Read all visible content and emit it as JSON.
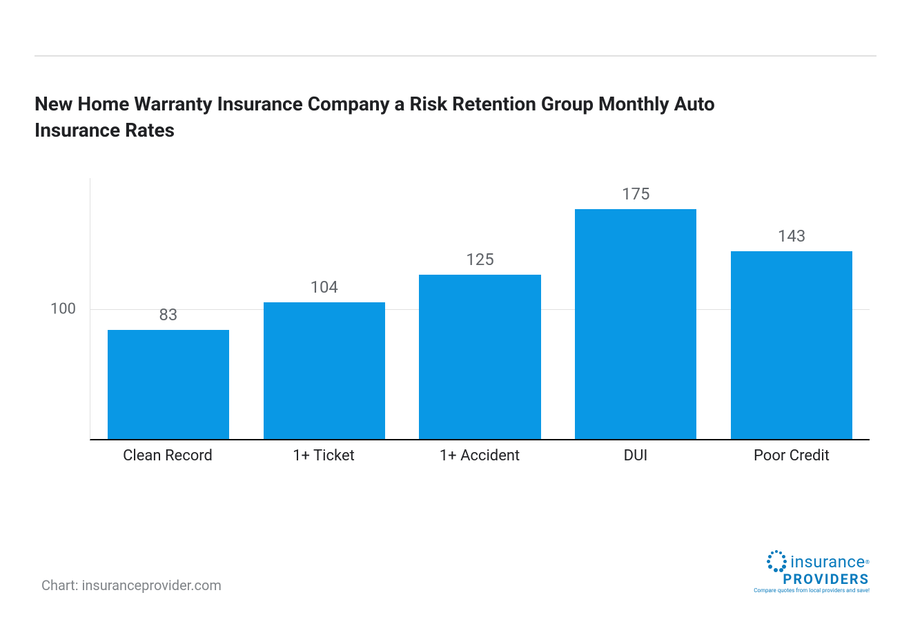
{
  "chart": {
    "type": "bar",
    "title": "New Home Warranty Insurance Company a Risk Retention Group Monthly Auto Insurance Rates",
    "title_fontsize": 28,
    "title_color": "#202124",
    "categories": [
      "Clean Record",
      "1+ Ticket",
      "1+ Accident",
      "DUI",
      "Poor Credit"
    ],
    "values": [
      83,
      104,
      125,
      175,
      143
    ],
    "bar_color": "#0998e5",
    "value_label_color": "#5f6368",
    "value_label_fontsize": 24,
    "x_label_color": "#202124",
    "x_label_fontsize": 22,
    "y_ticks": [
      100
    ],
    "y_tick_color": "#5f6368",
    "y_tick_fontsize": 22,
    "ylim": [
      0,
      200
    ],
    "background_color": "#ffffff",
    "grid_color": "#e0e0e0",
    "axis_color": "#000000",
    "bar_width": 0.78
  },
  "credit": "Chart: insuranceprovider.com",
  "logo": {
    "word1": "insurance",
    "word2": "PROVIDERS",
    "tagline": "Compare quotes from local providers and save!",
    "color": "#0a7bbd"
  }
}
